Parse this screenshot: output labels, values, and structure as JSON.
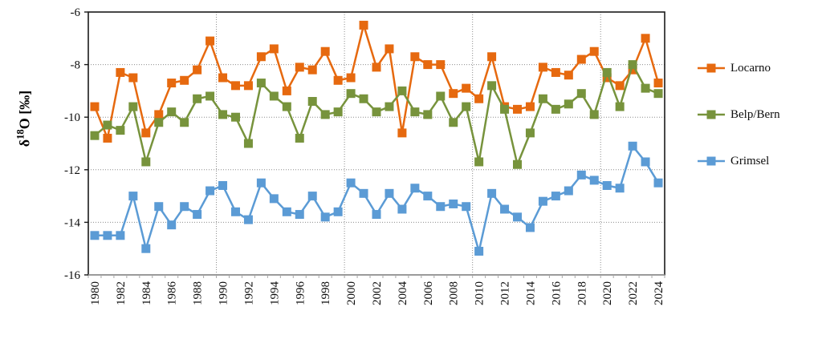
{
  "chart_data": {
    "type": "line",
    "title": "",
    "ylabel": "δ18O [‰]",
    "ylabel_parts": {
      "delta": "δ",
      "sup": "18",
      "rest": "O [‰]"
    },
    "x": [
      1980,
      1981,
      1982,
      1983,
      1984,
      1985,
      1986,
      1987,
      1988,
      1989,
      1990,
      1991,
      1992,
      1993,
      1994,
      1995,
      1996,
      1997,
      1998,
      1999,
      2000,
      2001,
      2002,
      2003,
      2004,
      2005,
      2006,
      2007,
      2008,
      2009,
      2010,
      2011,
      2012,
      2013,
      2014,
      2015,
      2016,
      2017,
      2018,
      2019,
      2020,
      2021,
      2022,
      2023,
      2024
    ],
    "x_tick_step": 2,
    "y_ticks": [
      -6,
      -8,
      -10,
      -12,
      -14,
      -16
    ],
    "ylim": [
      -16,
      -6
    ],
    "grid": {
      "h_lines": [
        -8,
        -10,
        -12,
        -14
      ],
      "v_years": [
        1990,
        2000,
        2010,
        2020
      ]
    },
    "legend_position": "right",
    "series": [
      {
        "name": "Locarno",
        "color": "#E6690F",
        "values": [
          -9.6,
          -10.8,
          -8.3,
          -8.5,
          -10.6,
          -9.9,
          -8.7,
          -8.6,
          -8.2,
          -7.1,
          -8.5,
          -8.8,
          -8.8,
          -7.7,
          -7.4,
          -9.0,
          -8.1,
          -8.2,
          -7.5,
          -8.6,
          -8.5,
          -6.5,
          -8.1,
          -7.4,
          -10.6,
          -7.7,
          -8.0,
          -8.0,
          -9.1,
          -8.9,
          -9.3,
          -7.7,
          -9.6,
          -9.7,
          -9.6,
          -8.1,
          -8.3,
          -8.4,
          -7.8,
          -7.5,
          -8.5,
          -8.8,
          -8.2,
          -7.0,
          -8.7
        ]
      },
      {
        "name": "Belp/Bern",
        "color": "#77933C",
        "values": [
          -10.7,
          -10.3,
          -10.5,
          -9.6,
          -11.7,
          -10.2,
          -9.8,
          -10.2,
          -9.3,
          -9.2,
          -9.9,
          -10.0,
          -11.0,
          -8.7,
          -9.2,
          -9.6,
          -10.8,
          -9.4,
          -9.9,
          -9.8,
          -9.1,
          -9.3,
          -9.8,
          -9.6,
          -9.0,
          -9.8,
          -9.9,
          -9.2,
          -10.2,
          -9.6,
          -11.7,
          -8.8,
          -9.7,
          -11.8,
          -10.6,
          -9.3,
          -9.7,
          -9.5,
          -9.1,
          -9.9,
          -8.3,
          -9.6,
          -8.0,
          -8.9,
          -9.1
        ]
      },
      {
        "name": "Grimsel",
        "color": "#5B9BD5",
        "values": [
          -14.5,
          -14.5,
          -14.5,
          -13.0,
          -15.0,
          -13.4,
          -14.1,
          -13.4,
          -13.7,
          -12.8,
          -12.6,
          -13.6,
          -13.9,
          -12.5,
          -13.1,
          -13.6,
          -13.7,
          -13.0,
          -13.8,
          -13.6,
          -12.5,
          -12.9,
          -13.7,
          -12.9,
          -13.5,
          -12.7,
          -13.0,
          -13.4,
          -13.3,
          -13.4,
          -15.1,
          -12.9,
          -13.5,
          -13.8,
          -14.2,
          -13.2,
          -13.0,
          -12.8,
          -12.2,
          -12.4,
          -12.6,
          -12.7,
          -11.1,
          -11.7,
          -12.5
        ]
      }
    ],
    "styles": {
      "grid_color": "#8c8c8c",
      "axis_line_color": "#a6a6a6",
      "border_color": "#1a1a1a",
      "tick_label_color": "#0d0d0d"
    }
  }
}
